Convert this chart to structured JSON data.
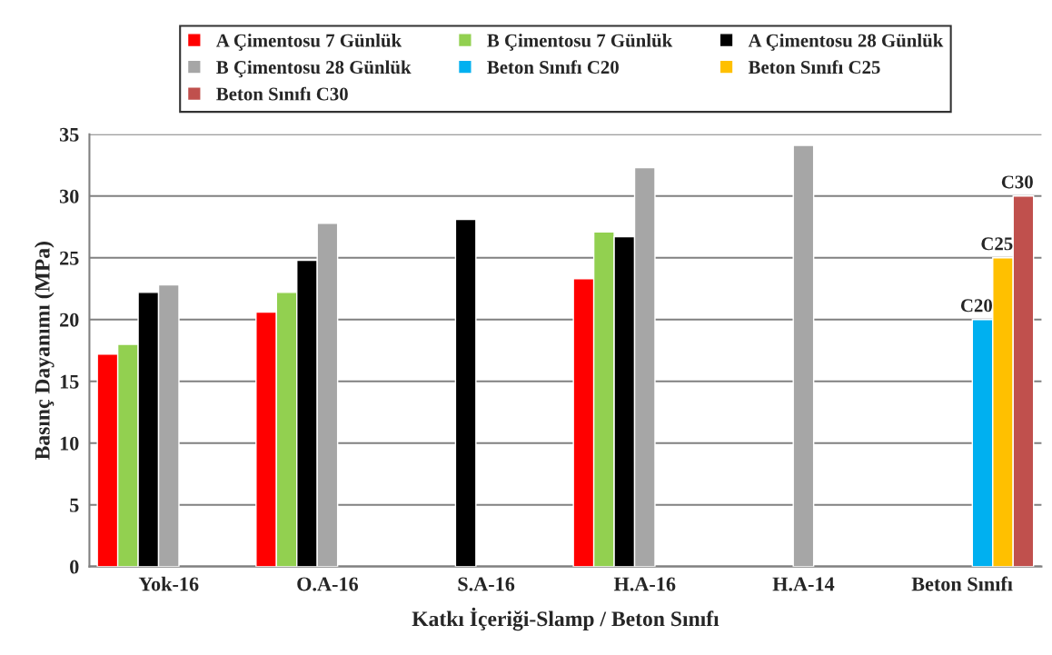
{
  "chart_data": {
    "type": "bar",
    "xlabel": "Katkı İçeriği-Slamp / Beton Sınıfı",
    "ylabel": "Basınç Dayanımı (MPa)",
    "categories": [
      "Yok-16",
      "O.A-16",
      "S.A-16",
      "H.A-16",
      "H.A-14",
      "Beton Sınıfı"
    ],
    "series": [
      {
        "name": "A Çimentosu 7 Günlük",
        "color": "#ff0000",
        "values": [
          17.2,
          20.6,
          null,
          23.3,
          null,
          null
        ]
      },
      {
        "name": "B Çimentosu 7 Günlük",
        "color": "#92d050",
        "values": [
          18.0,
          22.2,
          null,
          27.1,
          null,
          null
        ]
      },
      {
        "name": "A Çimentosu 28 Günlük",
        "color": "#000000",
        "values": [
          22.2,
          24.8,
          28.1,
          26.7,
          null,
          null
        ]
      },
      {
        "name": "B Çimentosu 28 Günlük",
        "color": "#a6a6a6",
        "values": [
          22.8,
          27.8,
          null,
          32.3,
          34.1,
          null
        ]
      },
      {
        "name": "Beton Sınıfı C20",
        "color": "#00b0f0",
        "values": [
          null,
          null,
          null,
          null,
          null,
          20
        ],
        "value_labels": [
          null,
          null,
          null,
          null,
          null,
          "C20"
        ]
      },
      {
        "name": "Beton Sınıfı C25",
        "color": "#ffc000",
        "values": [
          null,
          null,
          null,
          null,
          null,
          25
        ],
        "value_labels": [
          null,
          null,
          null,
          null,
          null,
          "C25"
        ]
      },
      {
        "name": "Beton Sınıfı C30",
        "color": "#c0504d",
        "values": [
          null,
          null,
          null,
          null,
          null,
          30
        ],
        "value_labels": [
          null,
          null,
          null,
          null,
          null,
          "C30"
        ]
      }
    ],
    "ylim": [
      0,
      35
    ],
    "yticks": [
      0,
      5,
      10,
      15,
      20,
      25,
      30,
      35
    ],
    "grid": "y",
    "legend": "top"
  }
}
